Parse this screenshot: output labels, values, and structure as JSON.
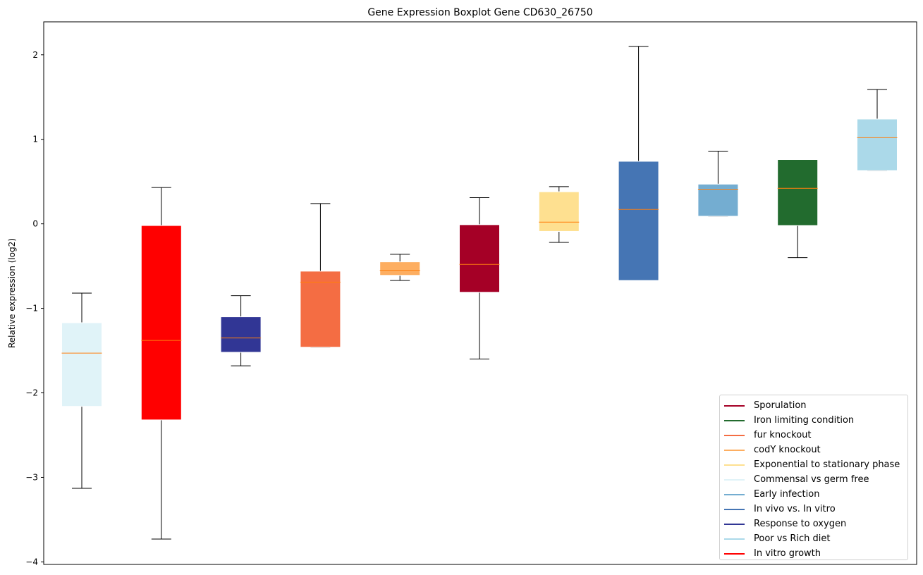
{
  "chart_data": {
    "type": "boxplot",
    "title": "Gene Expression Boxplot Gene CD630_26750",
    "xlabel": "",
    "ylabel": "Relative expression (log2)",
    "ylim": [
      -4.03,
      2.39
    ],
    "yticks": [
      2,
      1,
      0,
      -1,
      -2,
      -3,
      -4
    ],
    "ytick_labels": [
      "2",
      "1",
      "0",
      "−1",
      "−2",
      "−3",
      "−4"
    ],
    "grid": false,
    "legend_position": "lower-right",
    "median_color": "#ff7f0e",
    "whisker_color": "#000000",
    "series": [
      {
        "name": "Commensal vs germ free",
        "color": "#e0f3f8",
        "whisker_low": -3.13,
        "q1": -2.16,
        "median": -1.53,
        "q3": -1.17,
        "whisker_high": -0.82
      },
      {
        "name": "In vitro growth",
        "color": "#ff0000",
        "whisker_low": -3.73,
        "q1": -2.32,
        "median": -1.38,
        "q3": -0.02,
        "whisker_high": 0.43
      },
      {
        "name": "Response to oxygen",
        "color": "#313695",
        "whisker_low": -1.68,
        "q1": -1.52,
        "median": -1.35,
        "q3": -1.1,
        "whisker_high": -0.85
      },
      {
        "name": "fur knockout",
        "color": "#f46d43",
        "whisker_low": -1.46,
        "q1": -1.46,
        "median": -0.69,
        "q3": -0.56,
        "whisker_high": 0.24
      },
      {
        "name": "codY knockout",
        "color": "#fdae61",
        "whisker_low": -0.67,
        "q1": -0.61,
        "median": -0.55,
        "q3": -0.45,
        "whisker_high": -0.36
      },
      {
        "name": "Sporulation",
        "color": "#a50026",
        "whisker_low": -1.6,
        "q1": -0.81,
        "median": -0.48,
        "q3": -0.01,
        "whisker_high": 0.31
      },
      {
        "name": "Exponential to stationary phase",
        "color": "#fee090",
        "whisker_low": -0.22,
        "q1": -0.09,
        "median": 0.02,
        "q3": 0.38,
        "whisker_high": 0.44
      },
      {
        "name": "In vivo vs. In vitro",
        "color": "#4575b4",
        "whisker_low": -0.67,
        "q1": -0.67,
        "median": 0.17,
        "q3": 0.74,
        "whisker_high": 2.1
      },
      {
        "name": "Early infection",
        "color": "#74add1",
        "whisker_low": 0.09,
        "q1": 0.09,
        "median": 0.41,
        "q3": 0.47,
        "whisker_high": 0.86
      },
      {
        "name": "Iron limiting condition",
        "color": "#226b2e",
        "whisker_low": -0.4,
        "q1": -0.02,
        "median": 0.42,
        "q3": 0.76,
        "whisker_high": 0.76
      },
      {
        "name": "Poor vs Rich diet",
        "color": "#abd9e9",
        "whisker_low": 0.63,
        "q1": 0.63,
        "median": 1.02,
        "q3": 1.24,
        "whisker_high": 1.59
      }
    ],
    "legend": [
      {
        "label": "Sporulation",
        "color": "#a50026"
      },
      {
        "label": "Iron limiting condition",
        "color": "#226b2e"
      },
      {
        "label": "fur knockout",
        "color": "#f46d43"
      },
      {
        "label": "codY knockout",
        "color": "#fdae61"
      },
      {
        "label": "Exponential to stationary phase",
        "color": "#fee090"
      },
      {
        "label": "Commensal vs germ free",
        "color": "#e0f3f8"
      },
      {
        "label": "Early infection",
        "color": "#74add1"
      },
      {
        "label": "In vivo vs. In vitro",
        "color": "#4575b4"
      },
      {
        "label": "Response to oxygen",
        "color": "#313695"
      },
      {
        "label": "Poor vs Rich diet",
        "color": "#abd9e9"
      },
      {
        "label": "In vitro growth",
        "color": "#ff0000"
      }
    ]
  }
}
